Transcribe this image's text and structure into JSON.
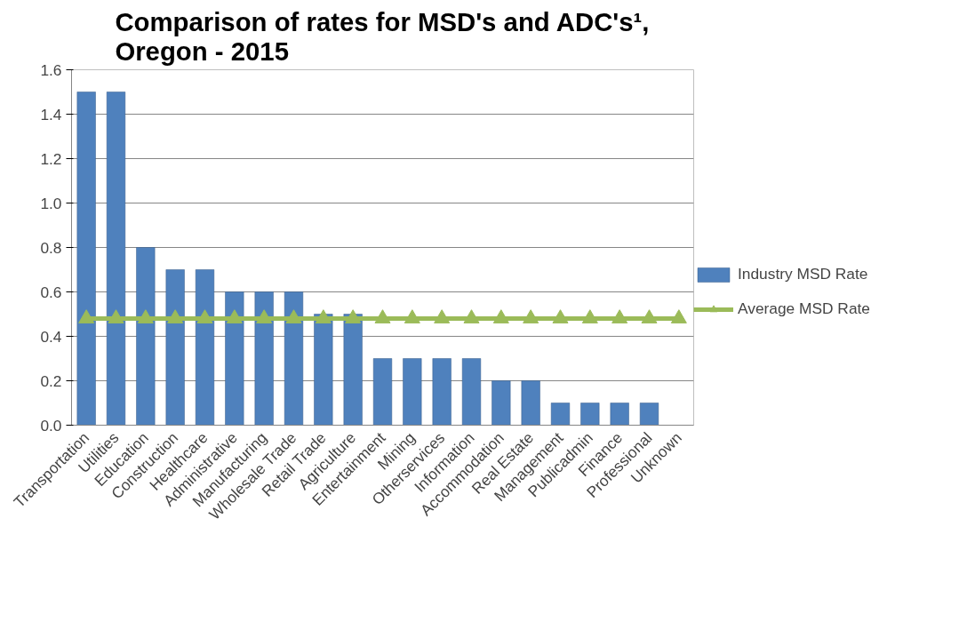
{
  "chart_data": {
    "type": "bar",
    "title": "Comparison of rates for MSD's and ADC's¹,\nOregon - 2015",
    "categories": [
      "Transportation",
      "Utilities",
      "Education",
      "Construction",
      "Healthcare",
      "Administrative",
      "Manufacturing",
      "Wholesale Trade",
      "Retail Trade",
      "Agriculture",
      "Entertainment",
      "Mining",
      "Otherservices",
      "Information",
      "Accommodation",
      "Real Estate",
      "Management",
      "Publicadmin",
      "Finance",
      "Professional",
      "Unknown"
    ],
    "series": [
      {
        "name": "Industry MSD Rate",
        "color": "#4f81bd",
        "values": [
          1.5,
          1.5,
          0.8,
          0.7,
          0.7,
          0.6,
          0.6,
          0.6,
          0.5,
          0.5,
          0.3,
          0.3,
          0.3,
          0.3,
          0.2,
          0.2,
          0.1,
          0.1,
          0.1,
          0.1,
          null
        ]
      },
      {
        "name": "Average MSD Rate",
        "type": "line",
        "color": "#9bbb59",
        "marker": "triangle",
        "values": [
          0.48,
          0.48,
          0.48,
          0.48,
          0.48,
          0.48,
          0.48,
          0.48,
          0.48,
          0.48,
          0.48,
          0.48,
          0.48,
          0.48,
          0.48,
          0.48,
          0.48,
          0.48,
          0.48,
          0.48,
          0.48
        ]
      }
    ],
    "ylim": [
      0,
      1.6
    ],
    "yticks": [
      {
        "value": 0,
        "label": "0.0"
      },
      0.2,
      0.4,
      0.6,
      0.8,
      {
        "value": 1,
        "label": "1.0"
      },
      1.2,
      1.4,
      1.6
    ],
    "grid": "y",
    "legend": "right"
  }
}
